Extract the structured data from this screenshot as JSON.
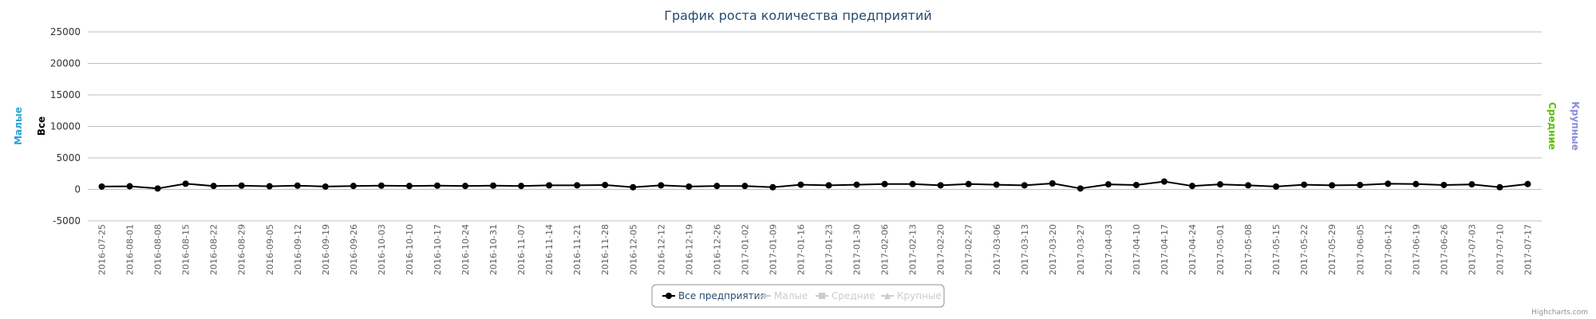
{
  "chart_data": {
    "type": "line",
    "title": "График роста количества предприятий",
    "y_axes": {
      "left_outer": {
        "label": "Малые",
        "color": "#2ba3d4"
      },
      "left_inner": {
        "label": "Все",
        "color": "#000000"
      },
      "right_inner": {
        "label": "Средние",
        "color": "#5bc000"
      },
      "right_outer": {
        "label": "Крупные",
        "color": "#8c8cd8"
      }
    },
    "y_ticks": [
      -5000,
      0,
      5000,
      10000,
      15000,
      20000,
      25000
    ],
    "ylim": [
      -5000,
      25000
    ],
    "grid": true,
    "legend_placement": "bottom-center",
    "categories": [
      "2016-07-25",
      "2016-08-01",
      "2016-08-08",
      "2016-08-15",
      "2016-08-22",
      "2016-08-29",
      "2016-09-05",
      "2016-09-12",
      "2016-09-19",
      "2016-09-26",
      "2016-10-03",
      "2016-10-10",
      "2016-10-17",
      "2016-10-24",
      "2016-10-31",
      "2016-11-07",
      "2016-11-14",
      "2016-11-21",
      "2016-11-28",
      "2016-12-05",
      "2016-12-12",
      "2016-12-19",
      "2016-12-26",
      "2017-01-02",
      "2017-01-09",
      "2017-01-16",
      "2017-01-23",
      "2017-01-30",
      "2017-02-06",
      "2017-02-13",
      "2017-02-20",
      "2017-02-27",
      "2017-03-06",
      "2017-03-13",
      "2017-03-20",
      "2017-03-27",
      "2017-04-03",
      "2017-04-10",
      "2017-04-17",
      "2017-04-24",
      "2017-05-01",
      "2017-05-08",
      "2017-05-15",
      "2017-05-22",
      "2017-05-29",
      "2017-06-05",
      "2017-06-12",
      "2017-06-19",
      "2017-06-26",
      "2017-07-03",
      "2017-07-10",
      "2017-07-17"
    ],
    "series": [
      {
        "name": "Все предприятия",
        "color": "#000000",
        "visible": true,
        "marker": "circle",
        "values": [
          450,
          500,
          150,
          900,
          550,
          600,
          500,
          600,
          450,
          550,
          600,
          550,
          600,
          550,
          600,
          550,
          650,
          650,
          700,
          350,
          650,
          450,
          550,
          550,
          350,
          750,
          650,
          750,
          850,
          850,
          650,
          850,
          750,
          650,
          950,
          150,
          800,
          700,
          1250,
          550,
          800,
          650,
          450,
          750,
          650,
          700,
          900,
          850,
          700,
          800,
          350,
          850
        ]
      },
      {
        "name": "Малые",
        "color": "#cccccc",
        "visible": false,
        "marker": "diamond"
      },
      {
        "name": "Средние",
        "color": "#cccccc",
        "visible": false,
        "marker": "square"
      },
      {
        "name": "Крупные",
        "color": "#cccccc",
        "visible": false,
        "marker": "triangle"
      }
    ]
  },
  "credits": "Highcharts.com"
}
